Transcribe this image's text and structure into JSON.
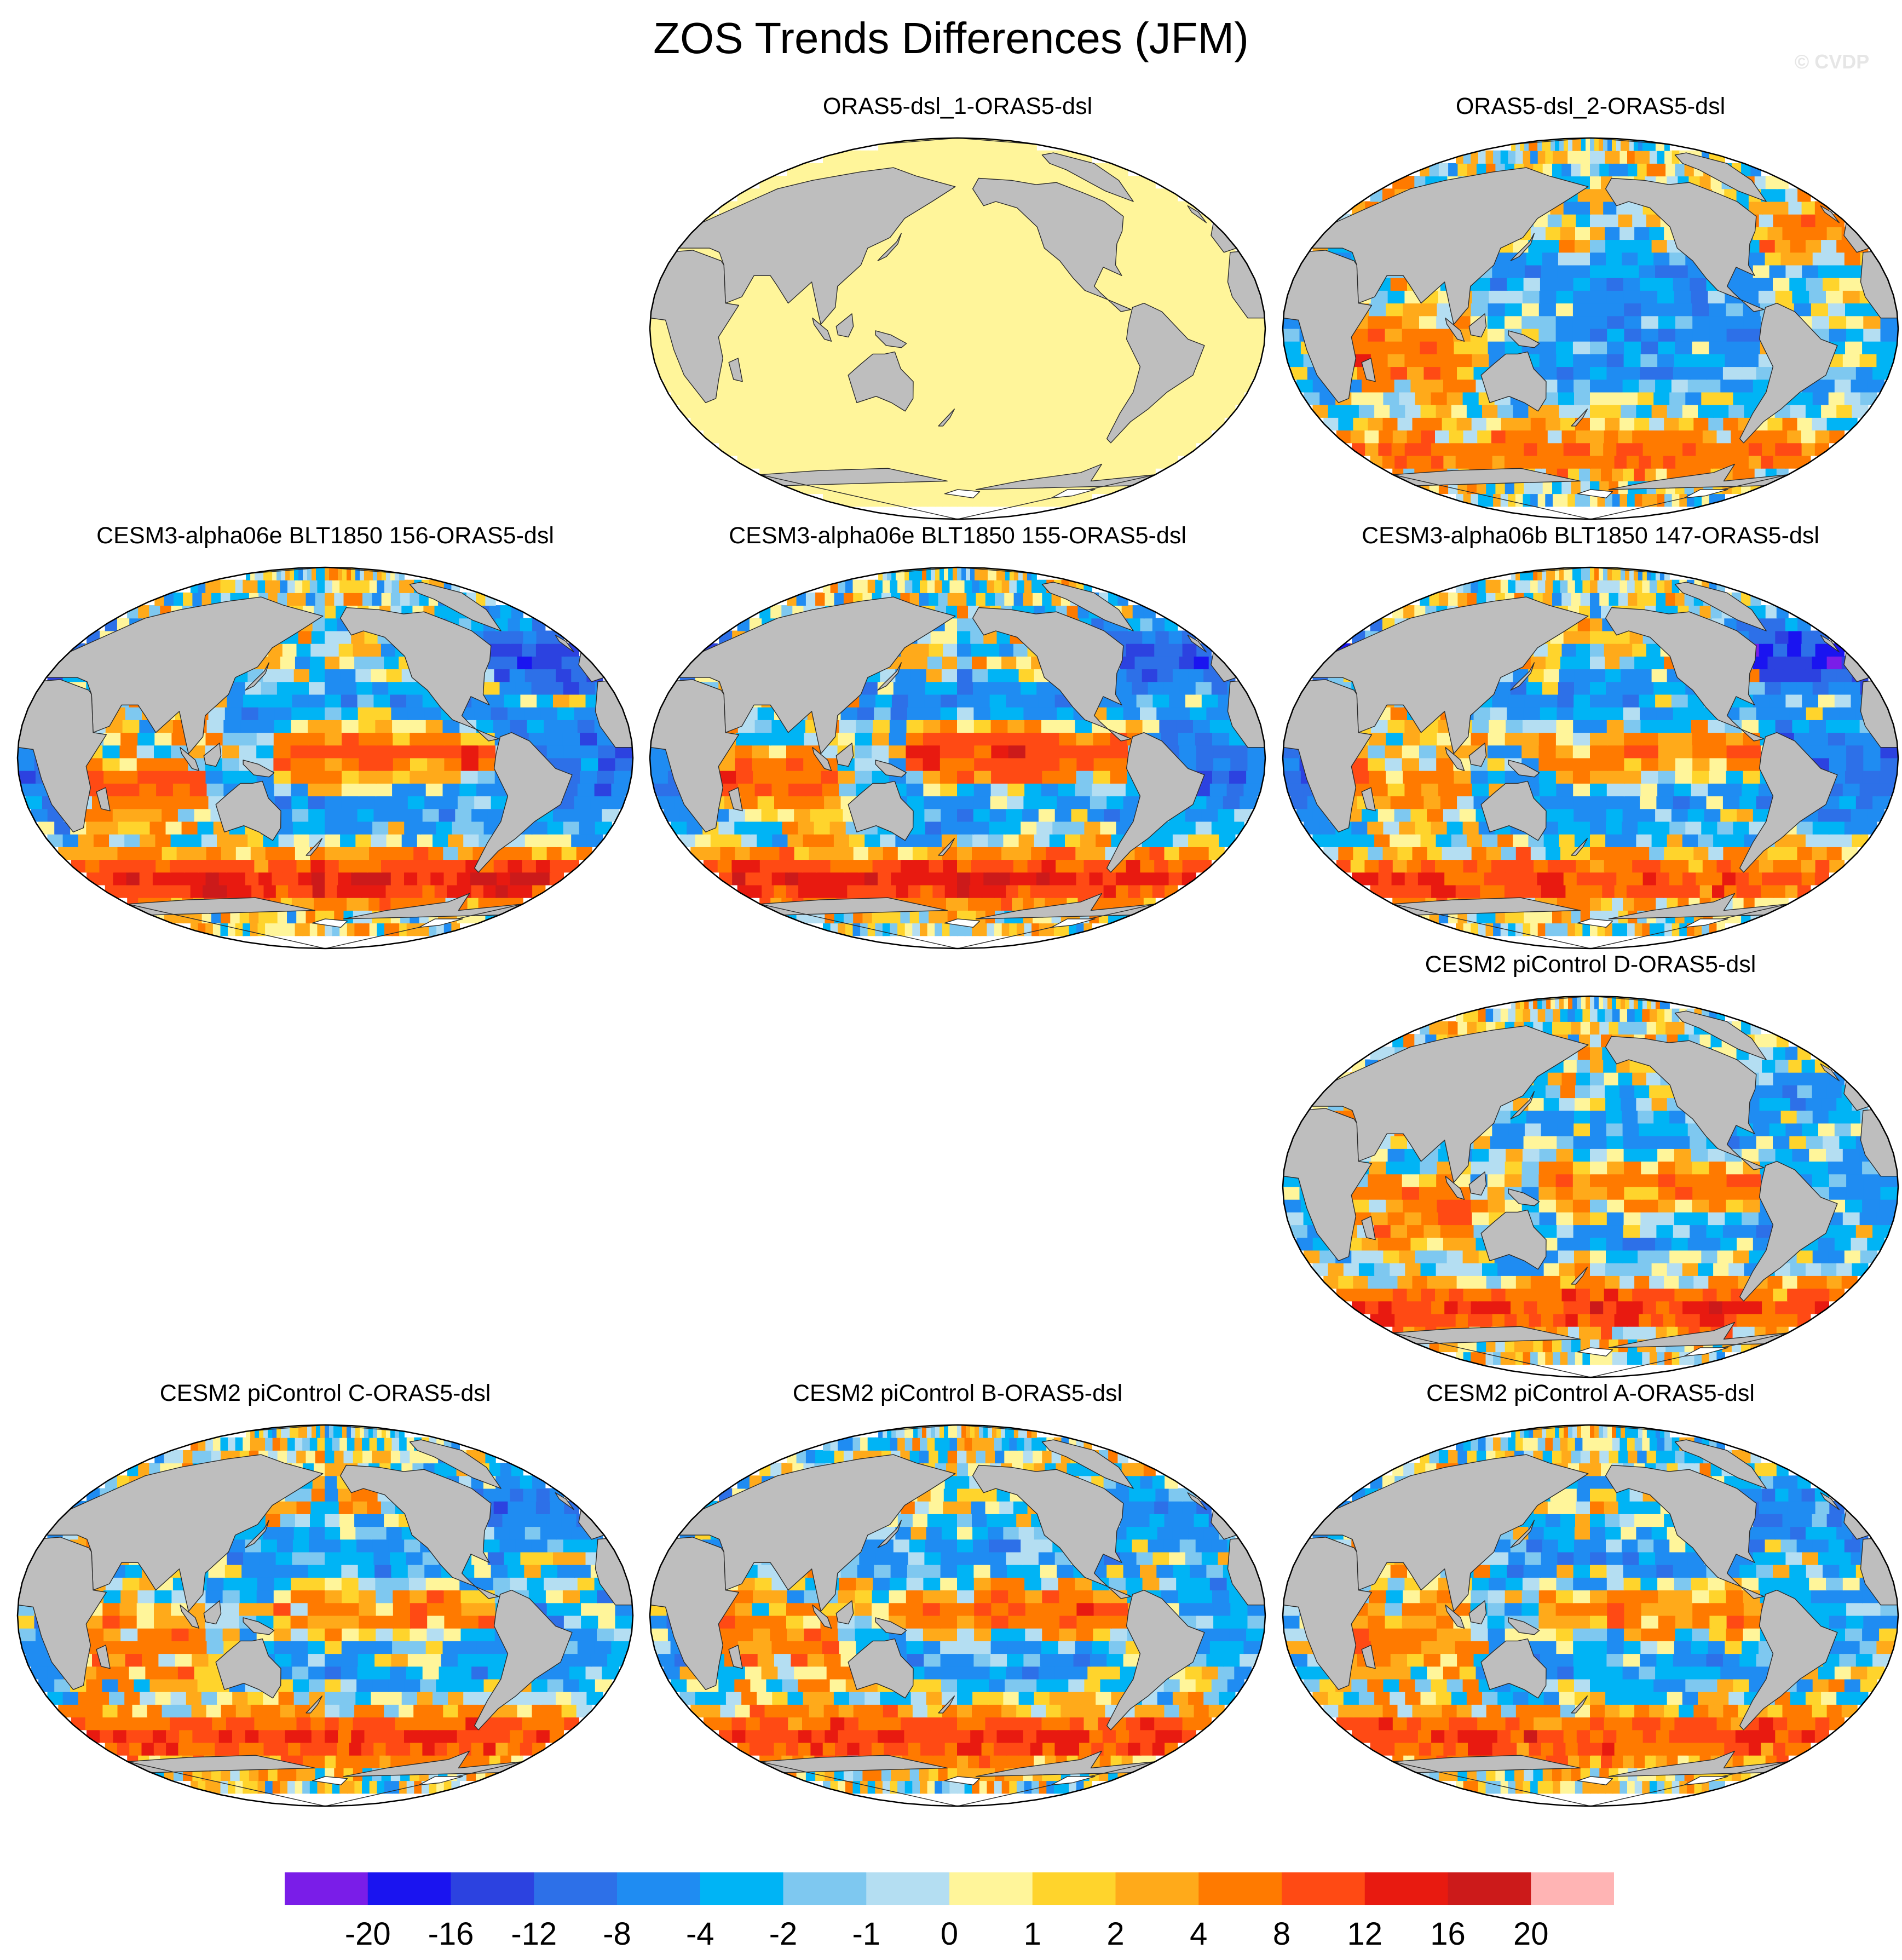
{
  "chart_data": {
    "type": "heatmap",
    "title": "ZOS Trends Differences (JFM)",
    "credit": "© CVDP",
    "layout": "4 rows x 3 columns grid with empty cells",
    "projection": "Robinson-like, Pacific-centered",
    "colors": {
      "land": "#bebebe",
      "ice": "#ffffff",
      "outline": "#2a2a2a",
      "frame": "#000000"
    },
    "colorbar": {
      "ticks": [
        "-20",
        "-16",
        "-12",
        "-8",
        "-4",
        "-2",
        "-1",
        "0",
        "1",
        "2",
        "4",
        "8",
        "12",
        "16",
        "20"
      ],
      "levels": [
        -20,
        -16,
        -12,
        -8,
        -4,
        -2,
        -1,
        0,
        1,
        2,
        4,
        8,
        12,
        16,
        20
      ],
      "colors": [
        "#7a1de8",
        "#1a14f0",
        "#2c42e0",
        "#2d70e8",
        "#1f8cf2",
        "#00b4f5",
        "#7ec8f0",
        "#b4def2",
        "#fff59a",
        "#ffd42c",
        "#ffaa1a",
        "#ff7a00",
        "#ff4a14",
        "#e81a10",
        "#cc1a1a",
        "#ffb4b4"
      ]
    },
    "panels": [
      {
        "id": "p1",
        "title": "ORAS5-dsl_1-ORAS5-dsl",
        "row": 0,
        "col": 1,
        "uniform": true,
        "pattern": {
          "tropicalPacific": 0,
          "tropicalAtlantic": 0,
          "southernOcean": 0,
          "northAtlantic": 0,
          "indian": 0,
          "offEquator": 0
        }
      },
      {
        "id": "p2",
        "title": "ORAS5-dsl_2-ORAS5-dsl",
        "row": 0,
        "col": 2,
        "uniform": false,
        "pattern": {
          "tropicalPacific": -5,
          "tropicalAtlantic": -3,
          "southernOcean": 7,
          "northAtlantic": 5,
          "indian": 7,
          "offEquator": -5
        }
      },
      {
        "id": "p3",
        "title": "CESM3-alpha06e BLT1850 156-ORAS5-dsl",
        "row": 1,
        "col": 0,
        "uniform": false,
        "pattern": {
          "tropicalPacific": 10,
          "tropicalAtlantic": -9,
          "southernOcean": 14,
          "northAtlantic": -14,
          "indian": 6,
          "offEquator": -6
        }
      },
      {
        "id": "p4",
        "title": "CESM3-alpha06e BLT1850 155-ORAS5-dsl",
        "row": 1,
        "col": 1,
        "uniform": false,
        "pattern": {
          "tropicalPacific": 13,
          "tropicalAtlantic": -8,
          "southernOcean": 14,
          "northAtlantic": -12,
          "indian": 7,
          "offEquator": -6
        }
      },
      {
        "id": "p5",
        "title": "CESM3-alpha06b BLT1850 147-ORAS5-dsl",
        "row": 1,
        "col": 2,
        "uniform": false,
        "pattern": {
          "tropicalPacific": 6,
          "tropicalAtlantic": -9,
          "southernOcean": 10,
          "northAtlantic": -16,
          "indian": 5,
          "offEquator": -5
        }
      },
      {
        "id": "p6",
        "title": "CESM2 piControl D-ORAS5-dsl",
        "row": 2,
        "col": 2,
        "uniform": false,
        "pattern": {
          "tropicalPacific": 7,
          "tropicalAtlantic": -4,
          "southernOcean": 11,
          "northAtlantic": -5,
          "indian": 6,
          "offEquator": -5
        }
      },
      {
        "id": "p7",
        "title": "CESM2 piControl C-ORAS5-dsl",
        "row": 3,
        "col": 0,
        "uniform": false,
        "pattern": {
          "tropicalPacific": 6,
          "tropicalAtlantic": -4,
          "southernOcean": 11,
          "northAtlantic": -8,
          "indian": 5,
          "offEquator": -5
        }
      },
      {
        "id": "p8",
        "title": "CESM2 piControl B-ORAS5-dsl",
        "row": 3,
        "col": 1,
        "uniform": false,
        "pattern": {
          "tropicalPacific": 8,
          "tropicalAtlantic": -4,
          "southernOcean": 11,
          "northAtlantic": -6,
          "indian": 6,
          "offEquator": -5
        }
      },
      {
        "id": "p9",
        "title": "CESM2 piControl A-ORAS5-dsl",
        "row": 3,
        "col": 2,
        "uniform": false,
        "pattern": {
          "tropicalPacific": 6,
          "tropicalAtlantic": -3,
          "southernOcean": 11,
          "northAtlantic": -7,
          "indian": 5,
          "offEquator": -5
        }
      }
    ]
  }
}
